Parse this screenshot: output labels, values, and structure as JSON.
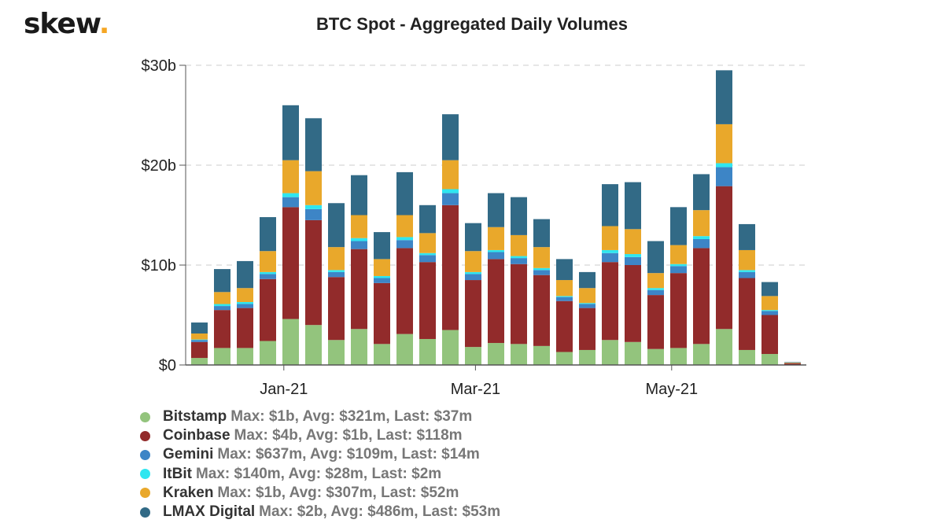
{
  "brand": {
    "logo_text": "skew",
    "logo_dot": ".",
    "dot_color": "#f5a623"
  },
  "chart_data": {
    "type": "bar",
    "stacked": true,
    "title": "BTC Spot - Aggregated Daily Volumes",
    "xlabel": "",
    "ylabel": "",
    "ylim": [
      0,
      30
    ],
    "y_unit": "billion USD",
    "y_ticks": [
      {
        "value": 0,
        "label": "$0"
      },
      {
        "value": 10,
        "label": "$10b"
      },
      {
        "value": 20,
        "label": "$20b"
      },
      {
        "value": 30,
        "label": "$30b"
      }
    ],
    "x_ticks": [
      {
        "index": 3.7,
        "label": "Jan-21"
      },
      {
        "index": 12.1,
        "label": "Mar-21"
      },
      {
        "index": 20.7,
        "label": "May-21"
      }
    ],
    "grid": true,
    "legend_position": "bottom-left",
    "series": [
      {
        "name": "Bitstamp",
        "stats": "Max: $1b, Avg: $321m, Last: $37m",
        "color": "#93c47d",
        "values": [
          0.7,
          1.7,
          1.7,
          2.4,
          4.6,
          4.0,
          2.5,
          3.6,
          2.1,
          3.1,
          2.6,
          3.5,
          1.8,
          2.2,
          2.1,
          1.9,
          1.3,
          1.5,
          2.5,
          2.3,
          1.6,
          1.7,
          2.1,
          3.6,
          1.5,
          1.1,
          0.04
        ]
      },
      {
        "name": "Coinbase",
        "stats": "Max: $4b, Avg: $1b, Last: $118m",
        "color": "#922b2b",
        "values": [
          1.6,
          3.8,
          4.0,
          6.2,
          11.2,
          10.5,
          6.3,
          8.0,
          6.1,
          8.6,
          7.7,
          12.5,
          6.7,
          8.4,
          8.0,
          7.1,
          5.1,
          4.2,
          7.8,
          7.7,
          5.4,
          7.5,
          9.6,
          14.3,
          7.2,
          3.9,
          0.12
        ]
      },
      {
        "name": "Gemini",
        "stats": "Max: $637m, Avg: $109m, Last: $14m",
        "color": "#3d85c6",
        "values": [
          0.2,
          0.4,
          0.4,
          0.5,
          1.0,
          1.1,
          0.5,
          0.8,
          0.5,
          0.8,
          0.7,
          1.2,
          0.6,
          0.7,
          0.6,
          0.5,
          0.4,
          0.4,
          0.9,
          0.8,
          0.5,
          0.7,
          0.9,
          1.9,
          0.6,
          0.4,
          0.014
        ]
      },
      {
        "name": "ItBit",
        "stats": "Max: $140m, Avg: $28m, Last: $2m",
        "color": "#2fe6f0",
        "values": [
          0.05,
          0.2,
          0.2,
          0.2,
          0.4,
          0.4,
          0.2,
          0.3,
          0.2,
          0.3,
          0.2,
          0.4,
          0.2,
          0.2,
          0.2,
          0.2,
          0.1,
          0.1,
          0.3,
          0.3,
          0.2,
          0.2,
          0.3,
          0.4,
          0.2,
          0.1,
          0.002
        ]
      },
      {
        "name": "Kraken",
        "stats": "Max: $1b, Avg: $307m, Last: $52m",
        "color": "#e9a82b",
        "values": [
          0.6,
          1.2,
          1.4,
          2.1,
          3.3,
          3.4,
          2.3,
          2.3,
          1.7,
          2.2,
          2.0,
          2.9,
          2.1,
          2.3,
          2.1,
          2.1,
          1.6,
          1.5,
          2.4,
          2.5,
          1.5,
          1.9,
          2.6,
          3.9,
          2.0,
          1.4,
          0.052
        ]
      },
      {
        "name": "LMAX Digital",
        "stats": "Max: $2b, Avg: $486m, Last: $53m",
        "color": "#326a86",
        "values": [
          1.1,
          2.3,
          2.7,
          3.4,
          5.5,
          5.3,
          4.4,
          4.0,
          2.7,
          4.3,
          2.8,
          4.6,
          2.8,
          3.4,
          3.8,
          2.8,
          2.1,
          1.6,
          4.2,
          4.7,
          3.2,
          3.8,
          3.6,
          5.4,
          2.6,
          1.4,
          0.053
        ]
      }
    ]
  }
}
